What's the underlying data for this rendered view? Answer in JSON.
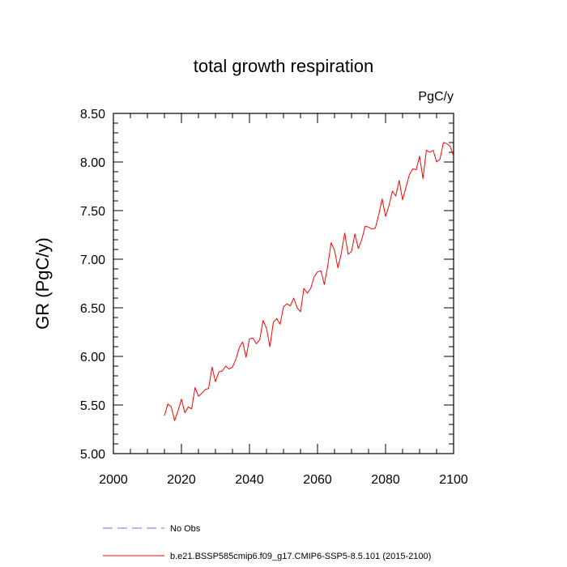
{
  "chart_data": {
    "type": "line",
    "title": "total growth respiration",
    "units": "PgC/y",
    "xlabel": "",
    "ylabel": "GR  (PgC/y)",
    "xlim": [
      2000,
      2100
    ],
    "ylim": [
      5.0,
      8.5
    ],
    "xticks": [
      2000,
      2020,
      2040,
      2060,
      2080,
      2100
    ],
    "xtick_labels": [
      "2000",
      "2020",
      "2040",
      "2060",
      "2080",
      "2100"
    ],
    "yticks": [
      5.0,
      5.5,
      6.0,
      6.5,
      7.0,
      7.5,
      8.0,
      8.5
    ],
    "ytick_labels": [
      "5.00",
      "5.50",
      "6.00",
      "6.50",
      "7.00",
      "7.50",
      "8.00",
      "8.50"
    ],
    "grid": false,
    "legend_position": "bottom",
    "series": [
      {
        "name": "b.e21.BSSP585cmip6.f09_g17.CMIP6-SSP5-8.5.101 (2015-2100)",
        "color": "#ff0000",
        "style": "solid",
        "x": [
          2015,
          2016,
          2017,
          2018,
          2019,
          2020,
          2021,
          2022,
          2023,
          2024,
          2025,
          2026,
          2027,
          2028,
          2029,
          2030,
          2031,
          2032,
          2033,
          2034,
          2035,
          2036,
          2037,
          2038,
          2039,
          2040,
          2041,
          2042,
          2043,
          2044,
          2045,
          2046,
          2047,
          2048,
          2049,
          2050,
          2051,
          2052,
          2053,
          2054,
          2055,
          2056,
          2057,
          2058,
          2059,
          2060,
          2061,
          2062,
          2063,
          2064,
          2065,
          2066,
          2067,
          2068,
          2069,
          2070,
          2071,
          2072,
          2073,
          2074,
          2075,
          2076,
          2077,
          2078,
          2079,
          2080,
          2081,
          2082,
          2083,
          2084,
          2085,
          2086,
          2087,
          2088,
          2089,
          2090,
          2091,
          2092,
          2093,
          2094,
          2095,
          2096,
          2097,
          2098,
          2099,
          2100
        ],
        "values": [
          5.39,
          5.51,
          5.48,
          5.34,
          5.44,
          5.56,
          5.42,
          5.48,
          5.46,
          5.68,
          5.59,
          5.62,
          5.66,
          5.67,
          5.89,
          5.74,
          5.84,
          5.85,
          5.9,
          5.87,
          5.89,
          5.97,
          6.09,
          6.15,
          5.99,
          6.18,
          6.19,
          6.13,
          6.17,
          6.37,
          6.29,
          6.1,
          6.35,
          6.39,
          6.33,
          6.51,
          6.54,
          6.52,
          6.6,
          6.5,
          6.46,
          6.7,
          6.65,
          6.7,
          6.82,
          6.87,
          6.88,
          6.74,
          6.93,
          7.17,
          7.09,
          6.91,
          7.06,
          7.27,
          7.05,
          7.08,
          7.26,
          7.11,
          7.2,
          7.34,
          7.33,
          7.31,
          7.32,
          7.46,
          7.62,
          7.44,
          7.55,
          7.7,
          7.65,
          7.81,
          7.61,
          7.74,
          7.87,
          7.93,
          7.92,
          8.06,
          7.83,
          8.12,
          8.1,
          8.12,
          8.0,
          8.03,
          8.2,
          8.19,
          8.16,
          8.06
        ]
      },
      {
        "name": "No Obs",
        "color": "#6b6bff",
        "style": "dashed",
        "x": [],
        "values": []
      }
    ]
  }
}
